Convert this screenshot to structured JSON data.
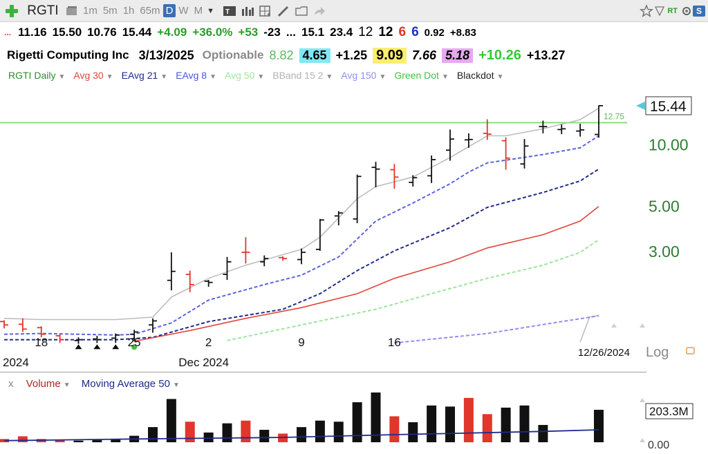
{
  "toolbar": {
    "symbol": "RGTI",
    "timeframes": [
      {
        "label": "1m",
        "active": false
      },
      {
        "label": "5m",
        "active": false
      },
      {
        "label": "1h",
        "active": false
      },
      {
        "label": "65m",
        "active": false
      },
      {
        "label": "D",
        "active": true
      },
      {
        "label": "W",
        "active": false
      },
      {
        "label": "M",
        "active": false
      }
    ],
    "rt_tag": "RT",
    "s_badge": "S",
    "icons": [
      "add-icon",
      "layout-icon",
      "chart-type-icon",
      "bar-style-icon",
      "grid-icon",
      "draw-pen-icon",
      "folder-icon",
      "share-icon",
      "star-icon",
      "filter-icon",
      "settings-icon"
    ]
  },
  "quote_line": {
    "prefix": "...",
    "open": "11.16",
    "high": "15.50",
    "low": "10.76",
    "close": "15.44",
    "change": "+4.09",
    "change_pct": "+36.0%",
    "v1": "+53",
    "v2": "-23",
    "v3": "...",
    "v4": "15.1",
    "v5": "23.4",
    "v6": "12",
    "v7": "12",
    "v8": "6",
    "v9": "6",
    "v10": "0.92",
    "v11": "+8.83"
  },
  "info_line": {
    "company": "Rigetti Computing Inc",
    "date": "3/13/2025",
    "optionable": "Optionable",
    "v1": "8.82",
    "v2": "4.65",
    "v3": "+1.25",
    "v4": "9.09",
    "v5": "7.66",
    "v6": "5.18",
    "v7": "+10.26",
    "v8": "+13.27"
  },
  "legend": [
    {
      "label": "RGTI Daily",
      "color": "#2e8b2e"
    },
    {
      "label": "Avg 30",
      "color": "#e0453a"
    },
    {
      "label": "EAvg 21",
      "color": "#1f2a8a"
    },
    {
      "label": "EAvg 8",
      "color": "#4a55d8"
    },
    {
      "label": "Avg 50",
      "color": "#9fe39f"
    },
    {
      "label": "BBand 15 2",
      "color": "#b3b3b3"
    },
    {
      "label": "Avg 150",
      "color": "#8e8ef0"
    },
    {
      "label": "Green Dot",
      "color": "#3fc13f"
    },
    {
      "label": "Blackdot",
      "color": "#222222"
    }
  ],
  "chart_data": {
    "type": "line",
    "title": "",
    "scale": "log",
    "y_ticks": [
      "10.00",
      "5.00",
      "3.00"
    ],
    "y_tick_values": [
      10,
      5,
      3
    ],
    "last_price_label": "15.44",
    "green_line_label": "12.75",
    "green_line_value": 12.75,
    "x_tick_labels": [
      "18",
      "25",
      "2",
      "9",
      "16"
    ],
    "x_tick_dates": [
      "2024-11-18",
      "2024-11-25",
      "2024-12-02",
      "2024-12-09",
      "2024-12-16"
    ],
    "x_sub_labels": [
      "2024",
      "Dec 2024"
    ],
    "x_sub_dates": [
      "2024-11-11",
      "2024-12-01"
    ],
    "date_stamp": "12/26/2024",
    "scale_label": "Log",
    "bars": [
      {
        "date": "2024-11-14",
        "open": 1.35,
        "high": 1.37,
        "low": 1.25,
        "close": 1.3,
        "dir": "down"
      },
      {
        "date": "2024-11-15",
        "open": 1.31,
        "high": 1.4,
        "low": 1.2,
        "close": 1.24,
        "dir": "down"
      },
      {
        "date": "2024-11-18",
        "open": 1.26,
        "high": 1.28,
        "low": 1.13,
        "close": 1.17,
        "dir": "down"
      },
      {
        "date": "2024-11-19",
        "open": 1.15,
        "high": 1.18,
        "low": 1.06,
        "close": 1.1,
        "dir": "down"
      },
      {
        "date": "2024-11-20",
        "open": 1.09,
        "high": 1.13,
        "low": 1.05,
        "close": 1.1,
        "dir": "up"
      },
      {
        "date": "2024-11-21",
        "open": 1.11,
        "high": 1.15,
        "low": 1.06,
        "close": 1.1,
        "dir": "up"
      },
      {
        "date": "2024-11-22",
        "open": 1.12,
        "high": 1.18,
        "low": 1.06,
        "close": 1.16,
        "dir": "up"
      },
      {
        "date": "2024-11-25",
        "open": 1.17,
        "high": 1.23,
        "low": 1.08,
        "close": 1.2,
        "dir": "up"
      },
      {
        "date": "2024-11-26",
        "open": 1.3,
        "high": 1.4,
        "low": 1.19,
        "close": 1.36,
        "dir": "up"
      },
      {
        "date": "2024-11-27",
        "open": 2.15,
        "high": 2.95,
        "low": 1.92,
        "close": 2.38,
        "dir": "up"
      },
      {
        "date": "2024-11-29",
        "open": 2.3,
        "high": 2.4,
        "low": 1.88,
        "close": 2.05,
        "dir": "down"
      },
      {
        "date": "2024-12-02",
        "open": 2.13,
        "high": 2.16,
        "low": 2.0,
        "close": 2.1,
        "dir": "up"
      },
      {
        "date": "2024-12-03",
        "open": 2.3,
        "high": 2.8,
        "low": 2.16,
        "close": 2.65,
        "dir": "up"
      },
      {
        "date": "2024-12-04",
        "open": 2.95,
        "high": 3.5,
        "low": 2.6,
        "close": 2.95,
        "dir": "down"
      },
      {
        "date": "2024-12-05",
        "open": 2.65,
        "high": 2.85,
        "low": 2.52,
        "close": 2.75,
        "dir": "up"
      },
      {
        "date": "2024-12-06",
        "open": 2.78,
        "high": 2.82,
        "low": 2.68,
        "close": 2.75,
        "dir": "down"
      },
      {
        "date": "2024-12-09",
        "open": 2.72,
        "high": 3.08,
        "low": 2.58,
        "close": 2.95,
        "dir": "up"
      },
      {
        "date": "2024-12-10",
        "open": 3.05,
        "high": 4.3,
        "low": 3.0,
        "close": 4.25,
        "dir": "up"
      },
      {
        "date": "2024-12-11",
        "open": 4.45,
        "high": 4.7,
        "low": 4.0,
        "close": 4.6,
        "dir": "up"
      },
      {
        "date": "2024-12-12",
        "open": 4.3,
        "high": 7.1,
        "low": 4.1,
        "close": 6.95,
        "dir": "up"
      },
      {
        "date": "2024-12-13",
        "open": 7.7,
        "high": 8.2,
        "low": 6.15,
        "close": 7.55,
        "dir": "up"
      },
      {
        "date": "2024-12-16",
        "open": 7.5,
        "high": 8.0,
        "low": 6.05,
        "close": 6.9,
        "dir": "down"
      },
      {
        "date": "2024-12-17",
        "open": 6.5,
        "high": 7.05,
        "low": 6.2,
        "close": 6.85,
        "dir": "up"
      },
      {
        "date": "2024-12-18",
        "open": 7.0,
        "high": 8.8,
        "low": 6.45,
        "close": 8.4,
        "dir": "up"
      },
      {
        "date": "2024-12-19",
        "open": 9.35,
        "high": 11.8,
        "low": 8.3,
        "close": 10.6,
        "dir": "up"
      },
      {
        "date": "2024-12-20",
        "open": 10.5,
        "high": 11.3,
        "low": 9.6,
        "close": 10.55,
        "dir": "up"
      },
      {
        "date": "2024-12-23",
        "open": 11.3,
        "high": 13.25,
        "low": 10.5,
        "close": 11.2,
        "dir": "down"
      },
      {
        "date": "2024-12-24",
        "open": 10.4,
        "high": 10.8,
        "low": 7.5,
        "close": 8.55,
        "dir": "down"
      },
      {
        "date": "2024-12-26",
        "open": 8.0,
        "high": 10.6,
        "low": 7.6,
        "close": 9.8,
        "dir": "up"
      },
      {
        "date": "2024-12-27",
        "open": 12.2,
        "high": 13.05,
        "low": 11.3,
        "close": 12.2,
        "dir": "up"
      },
      {
        "date": "2024-12-30",
        "open": 11.8,
        "high": 12.5,
        "low": 11.2,
        "close": 11.9,
        "dir": "up"
      },
      {
        "date": "2024-12-31",
        "open": 11.6,
        "high": 12.6,
        "low": 10.9,
        "close": 11.75,
        "dir": "up"
      },
      {
        "date": "2025-01-02",
        "open": 11.16,
        "high": 15.5,
        "low": 10.76,
        "close": 15.44,
        "dir": "up"
      }
    ],
    "series": [
      {
        "name": "BBand 15 2",
        "color": "#bdbdbd",
        "dash": false,
        "points": [
          [
            "2024-11-14",
            1.4
          ],
          [
            "2024-11-18",
            1.38
          ],
          [
            "2024-11-22",
            1.38
          ],
          [
            "2024-11-26",
            1.42
          ],
          [
            "2024-11-27",
            1.78
          ],
          [
            "2024-12-02",
            2.2
          ],
          [
            "2024-12-04",
            2.55
          ],
          [
            "2024-12-09",
            3.05
          ],
          [
            "2024-12-10",
            3.5
          ],
          [
            "2024-12-12",
            5.4
          ],
          [
            "2024-12-13",
            6.2
          ],
          [
            "2024-12-17",
            6.9
          ],
          [
            "2024-12-19",
            8.6
          ],
          [
            "2024-12-23",
            11.0
          ],
          [
            "2024-12-24",
            11.0
          ],
          [
            "2024-12-27",
            11.9
          ],
          [
            "2024-12-31",
            13.2
          ],
          [
            "2025-01-02",
            15.0
          ]
        ]
      },
      {
        "name": "BBand lower",
        "color": "#bdbdbd",
        "dash": false,
        "points": [
          [
            "2024-12-31",
            1.07
          ],
          [
            "2025-01-01",
            1.42
          ],
          [
            "2025-01-02",
            1.45
          ]
        ]
      },
      {
        "name": "EAvg 8",
        "color": "#5b63e0",
        "dash": true,
        "points": [
          [
            "2024-11-14",
            1.17
          ],
          [
            "2024-11-18",
            1.18
          ],
          [
            "2024-11-22",
            1.16
          ],
          [
            "2024-11-25",
            1.17
          ],
          [
            "2024-11-27",
            1.33
          ],
          [
            "2024-12-02",
            1.72
          ],
          [
            "2024-12-05",
            2.05
          ],
          [
            "2024-12-09",
            2.28
          ],
          [
            "2024-12-11",
            2.8
          ],
          [
            "2024-12-13",
            4.2
          ],
          [
            "2024-12-17",
            5.15
          ],
          [
            "2024-12-19",
            6.4
          ],
          [
            "2024-12-20",
            7.3
          ],
          [
            "2024-12-23",
            8.1
          ],
          [
            "2024-12-24",
            8.35
          ],
          [
            "2024-12-27",
            8.9
          ],
          [
            "2024-12-31",
            9.6
          ],
          [
            "2025-01-02",
            11.0
          ]
        ]
      },
      {
        "name": "EAvg 21",
        "color": "#1f2a8a",
        "dash": true,
        "points": [
          [
            "2024-11-14",
            1.1
          ],
          [
            "2024-11-22",
            1.1
          ],
          [
            "2024-11-26",
            1.13
          ],
          [
            "2024-12-02",
            1.35
          ],
          [
            "2024-12-06",
            1.55
          ],
          [
            "2024-12-10",
            1.85
          ],
          [
            "2024-12-12",
            2.4
          ],
          [
            "2024-12-16",
            3.0
          ],
          [
            "2024-12-19",
            3.9
          ],
          [
            "2024-12-23",
            4.9
          ],
          [
            "2024-12-27",
            5.8
          ],
          [
            "2024-12-31",
            6.6
          ],
          [
            "2025-01-02",
            7.55
          ]
        ]
      },
      {
        "name": "Avg 30",
        "color": "#e0453a",
        "dash": false,
        "points": [
          [
            "2024-11-25",
            1.08
          ],
          [
            "2024-11-29",
            1.22
          ],
          [
            "2024-12-04",
            1.4
          ],
          [
            "2024-12-09",
            1.58
          ],
          [
            "2024-12-12",
            1.85
          ],
          [
            "2024-12-16",
            2.2
          ],
          [
            "2024-12-19",
            2.65
          ],
          [
            "2024-12-23",
            3.1
          ],
          [
            "2024-12-27",
            3.6
          ],
          [
            "2024-12-31",
            4.2
          ],
          [
            "2025-01-02",
            4.95
          ]
        ]
      },
      {
        "name": "Avg 50",
        "color": "#9fe39f",
        "dash": true,
        "points": [
          [
            "2024-12-03",
            1.09
          ],
          [
            "2024-12-09",
            1.3
          ],
          [
            "2024-12-13",
            1.55
          ],
          [
            "2024-12-18",
            1.85
          ],
          [
            "2024-12-23",
            2.2
          ],
          [
            "2024-12-27",
            2.55
          ],
          [
            "2024-12-31",
            2.95
          ],
          [
            "2025-01-02",
            3.4
          ]
        ]
      },
      {
        "name": "Avg 150",
        "color": "#8e8ef0",
        "dash": true,
        "points": [
          [
            "2024-12-16",
            1.06
          ],
          [
            "2024-12-23",
            1.18
          ],
          [
            "2024-12-30",
            1.35
          ],
          [
            "2025-01-02",
            1.44
          ]
        ]
      }
    ],
    "black_dots": [
      "2024-11-20",
      "2024-11-21",
      "2024-11-22"
    ],
    "green_dots": [
      "2024-11-25"
    ]
  },
  "volume": {
    "legend_x": "x",
    "volume_label": "Volume",
    "ma_label": "Moving Average 50",
    "last_volume_label": "203.3M",
    "axis_zero_label": "0.00",
    "bars": [
      {
        "date": "2024-11-14",
        "value": 6,
        "dir": "down"
      },
      {
        "date": "2024-11-15",
        "value": 11,
        "dir": "down"
      },
      {
        "date": "2024-11-18",
        "value": 6,
        "dir": "down"
      },
      {
        "date": "2024-11-19",
        "value": 4,
        "dir": "down"
      },
      {
        "date": "2024-11-20",
        "value": 3,
        "dir": "up"
      },
      {
        "date": "2024-11-21",
        "value": 4,
        "dir": "up"
      },
      {
        "date": "2024-11-22",
        "value": 6,
        "dir": "up"
      },
      {
        "date": "2024-11-25",
        "value": 12,
        "dir": "up"
      },
      {
        "date": "2024-11-26",
        "value": 28,
        "dir": "up"
      },
      {
        "date": "2024-11-27",
        "value": 80,
        "dir": "up"
      },
      {
        "date": "2024-11-29",
        "value": 38,
        "dir": "down"
      },
      {
        "date": "2024-12-02",
        "value": 18,
        "dir": "up"
      },
      {
        "date": "2024-12-03",
        "value": 35,
        "dir": "up"
      },
      {
        "date": "2024-12-04",
        "value": 40,
        "dir": "down"
      },
      {
        "date": "2024-12-05",
        "value": 23,
        "dir": "up"
      },
      {
        "date": "2024-12-06",
        "value": 16,
        "dir": "down"
      },
      {
        "date": "2024-12-09",
        "value": 28,
        "dir": "up"
      },
      {
        "date": "2024-12-10",
        "value": 40,
        "dir": "up"
      },
      {
        "date": "2024-12-11",
        "value": 38,
        "dir": "up"
      },
      {
        "date": "2024-12-12",
        "value": 74,
        "dir": "up"
      },
      {
        "date": "2024-12-13",
        "value": 92,
        "dir": "up"
      },
      {
        "date": "2024-12-16",
        "value": 48,
        "dir": "down"
      },
      {
        "date": "2024-12-17",
        "value": 37,
        "dir": "up"
      },
      {
        "date": "2024-12-18",
        "value": 68,
        "dir": "up"
      },
      {
        "date": "2024-12-19",
        "value": 66,
        "dir": "up"
      },
      {
        "date": "2024-12-20",
        "value": 82,
        "dir": "down"
      },
      {
        "date": "2024-12-23",
        "value": 52,
        "dir": "down"
      },
      {
        "date": "2024-12-24",
        "value": 64,
        "dir": "up"
      },
      {
        "date": "2024-12-26",
        "value": 68,
        "dir": "up"
      },
      {
        "date": "2024-12-27",
        "value": 32,
        "dir": "up"
      },
      {
        "date": "2025-01-02",
        "value": 60,
        "dir": "up"
      }
    ],
    "ma_line": [
      [
        "2024-11-14",
        3
      ],
      [
        "2024-11-25",
        6
      ],
      [
        "2024-12-06",
        9
      ],
      [
        "2024-12-16",
        14
      ],
      [
        "2024-12-27",
        20
      ],
      [
        "2025-01-02",
        23
      ]
    ]
  },
  "colors": {
    "up_bar": "#111111",
    "down_bar": "#e0362c",
    "green_line": "#86e07a",
    "price_axis_text": "#2e7d32"
  }
}
